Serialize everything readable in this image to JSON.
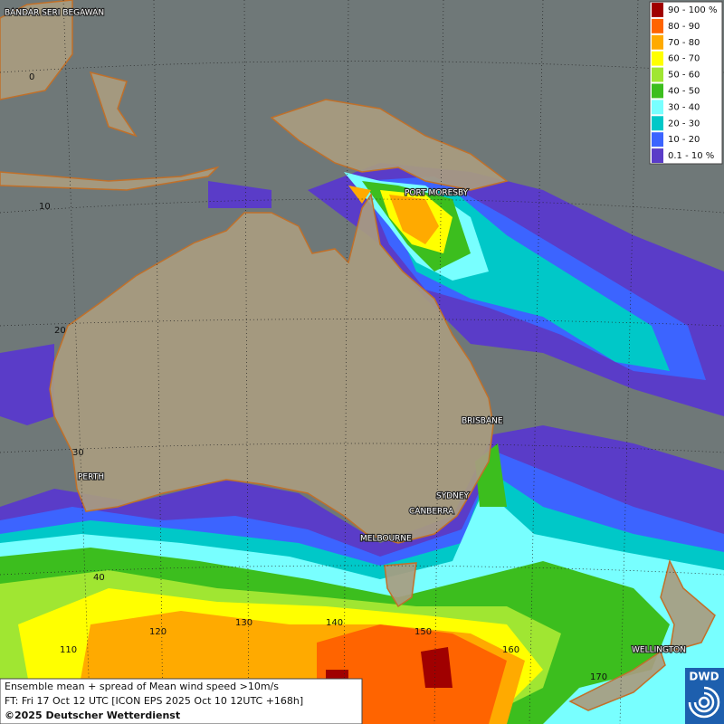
{
  "legend": [
    {
      "label": "90 - 100 %",
      "color": "#a00000"
    },
    {
      "label": "80 - 90",
      "color": "#ff6400"
    },
    {
      "label": "70 - 80",
      "color": "#ffaa00"
    },
    {
      "label": "60 - 70",
      "color": "#ffff00"
    },
    {
      "label": "50 - 60",
      "color": "#a0e632"
    },
    {
      "label": "40 - 50",
      "color": "#3cbe1e"
    },
    {
      "label": "30 - 40",
      "color": "#78ffff"
    },
    {
      "label": "20 - 30",
      "color": "#00c8c8"
    },
    {
      "label": "10 - 20",
      "color": "#3c64ff"
    },
    {
      "label": "0.1 - 10 %",
      "color": "#5a3cc8"
    }
  ],
  "cities": [
    "BANDAR SERI BEGAWAN",
    "PORT MORESBY",
    "BRISBANE",
    "PERTH",
    "SYDNEY",
    "CANBERRA",
    "MELBOURNE",
    "WELLINGTON"
  ],
  "latitudes": [
    "0",
    "10",
    "20",
    "30",
    "40"
  ],
  "longitudes": [
    "110",
    "120",
    "130",
    "140",
    "150",
    "160",
    "170"
  ],
  "caption": [
    "Ensemble mean + spread of Mean wind speed >10m/s",
    "FT: Fri 17 Oct 12 UTC [ICON EPS 2025 Oct 10 12UTC +168h]",
    "©2025 Deutscher Wetterdienst"
  ],
  "logo": "DWD"
}
